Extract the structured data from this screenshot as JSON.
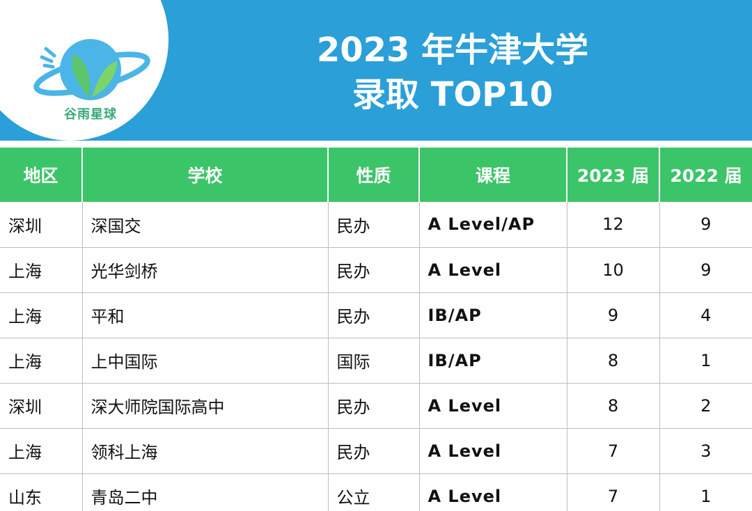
{
  "brand": {
    "logo_text": "谷雨星球",
    "icon": "sprout-planet-icon"
  },
  "title": {
    "line1": "2023 年牛津大学",
    "line2": "录取 TOP10"
  },
  "colors": {
    "banner": "#2a9fd8",
    "header": "#3cc468",
    "logo_green": "#37a97a"
  },
  "table": {
    "headers": [
      "地区",
      "学校",
      "性质",
      "课程",
      "2023 届",
      "2022 届"
    ],
    "rows": [
      [
        "深圳",
        "深国交",
        "民办",
        "A Level/AP",
        "12",
        "9"
      ],
      [
        "上海",
        "光华剑桥",
        "民办",
        "A Level",
        "10",
        "9"
      ],
      [
        "上海",
        "平和",
        "民办",
        "IB/AP",
        "9",
        "4"
      ],
      [
        "上海",
        "上中国际",
        "国际",
        "IB/AP",
        "8",
        "1"
      ],
      [
        "深圳",
        "深大师院国际高中",
        "民办",
        "A Level",
        "8",
        "2"
      ],
      [
        "上海",
        "领科上海",
        "民办",
        "A Level",
        "7",
        "3"
      ],
      [
        "山东",
        "青岛二中",
        "公立",
        "A Level",
        "7",
        "1"
      ]
    ]
  }
}
